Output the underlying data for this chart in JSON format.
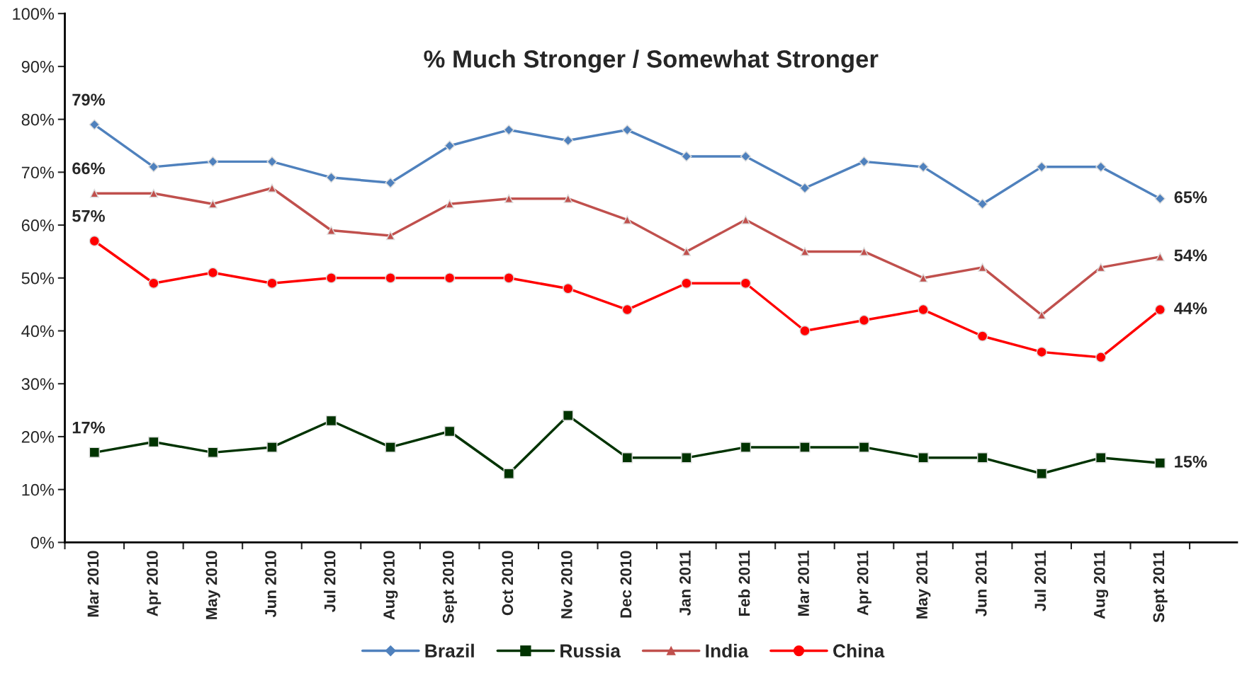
{
  "chart_data": {
    "type": "line",
    "title": "% Much Stronger / Somewhat Stronger",
    "categories": [
      "Mar 2010",
      "Apr 2010",
      "May 2010",
      "Jun 2010",
      "Jul 2010",
      "Aug 2010",
      "Sept 2010",
      "Oct 2010",
      "Nov 2010",
      "Dec 2010",
      "Jan 2011",
      "Feb 2011",
      "Mar 2011",
      "Apr 2011",
      "May 2011",
      "Jun 2011",
      "Jul 2011",
      "Aug 2011",
      "Sept 2011"
    ],
    "series": [
      {
        "name": "Brazil",
        "color": "#4f81bd",
        "marker": "diamond",
        "values": [
          79,
          71,
          72,
          72,
          69,
          68,
          75,
          78,
          76,
          78,
          73,
          73,
          67,
          72,
          71,
          64,
          71,
          71,
          65
        ],
        "value_labels": [
          "79%",
          null,
          null,
          null,
          null,
          null,
          null,
          null,
          null,
          null,
          null,
          null,
          null,
          null,
          null,
          null,
          null,
          null,
          "65%"
        ]
      },
      {
        "name": "Russia",
        "color": "#003300",
        "marker": "square",
        "values": [
          17,
          19,
          17,
          18,
          23,
          18,
          21,
          13,
          24,
          16,
          16,
          18,
          18,
          18,
          16,
          16,
          13,
          16,
          15
        ],
        "value_labels": [
          "17%",
          null,
          null,
          null,
          null,
          null,
          null,
          null,
          null,
          null,
          null,
          null,
          null,
          null,
          null,
          null,
          null,
          null,
          "15%"
        ]
      },
      {
        "name": "India",
        "color": "#c0504d",
        "marker": "triangle",
        "values": [
          66,
          66,
          64,
          67,
          59,
          58,
          64,
          65,
          65,
          61,
          55,
          61,
          55,
          55,
          50,
          52,
          43,
          52,
          54
        ],
        "value_labels": [
          "66%",
          null,
          null,
          null,
          null,
          null,
          null,
          null,
          null,
          null,
          null,
          null,
          null,
          null,
          null,
          null,
          null,
          null,
          "54%"
        ]
      },
      {
        "name": "China",
        "color": "#ff0000",
        "marker": "circle",
        "values": [
          57,
          49,
          51,
          49,
          50,
          50,
          50,
          50,
          48,
          44,
          49,
          49,
          40,
          42,
          44,
          39,
          36,
          35,
          44
        ],
        "value_labels": [
          "57%",
          null,
          null,
          null,
          null,
          null,
          null,
          null,
          null,
          null,
          null,
          null,
          null,
          null,
          null,
          null,
          null,
          null,
          "44%"
        ]
      }
    ],
    "ylim": [
      0,
      100
    ],
    "yticks": [
      {
        "value": 0,
        "label": "0%"
      },
      {
        "value": 10,
        "label": "10%"
      },
      {
        "value": 20,
        "label": "20%"
      },
      {
        "value": 30,
        "label": "30%"
      },
      {
        "value": 40,
        "label": "40%"
      },
      {
        "value": 50,
        "label": "50%"
      },
      {
        "value": 60,
        "label": "60%"
      },
      {
        "value": 70,
        "label": "70%"
      },
      {
        "value": 80,
        "label": "80%"
      },
      {
        "value": 90,
        "label": "90%"
      },
      {
        "value": 100,
        "label": "100%"
      }
    ],
    "grid": false,
    "legend": "bottom",
    "line_style": "solid"
  }
}
